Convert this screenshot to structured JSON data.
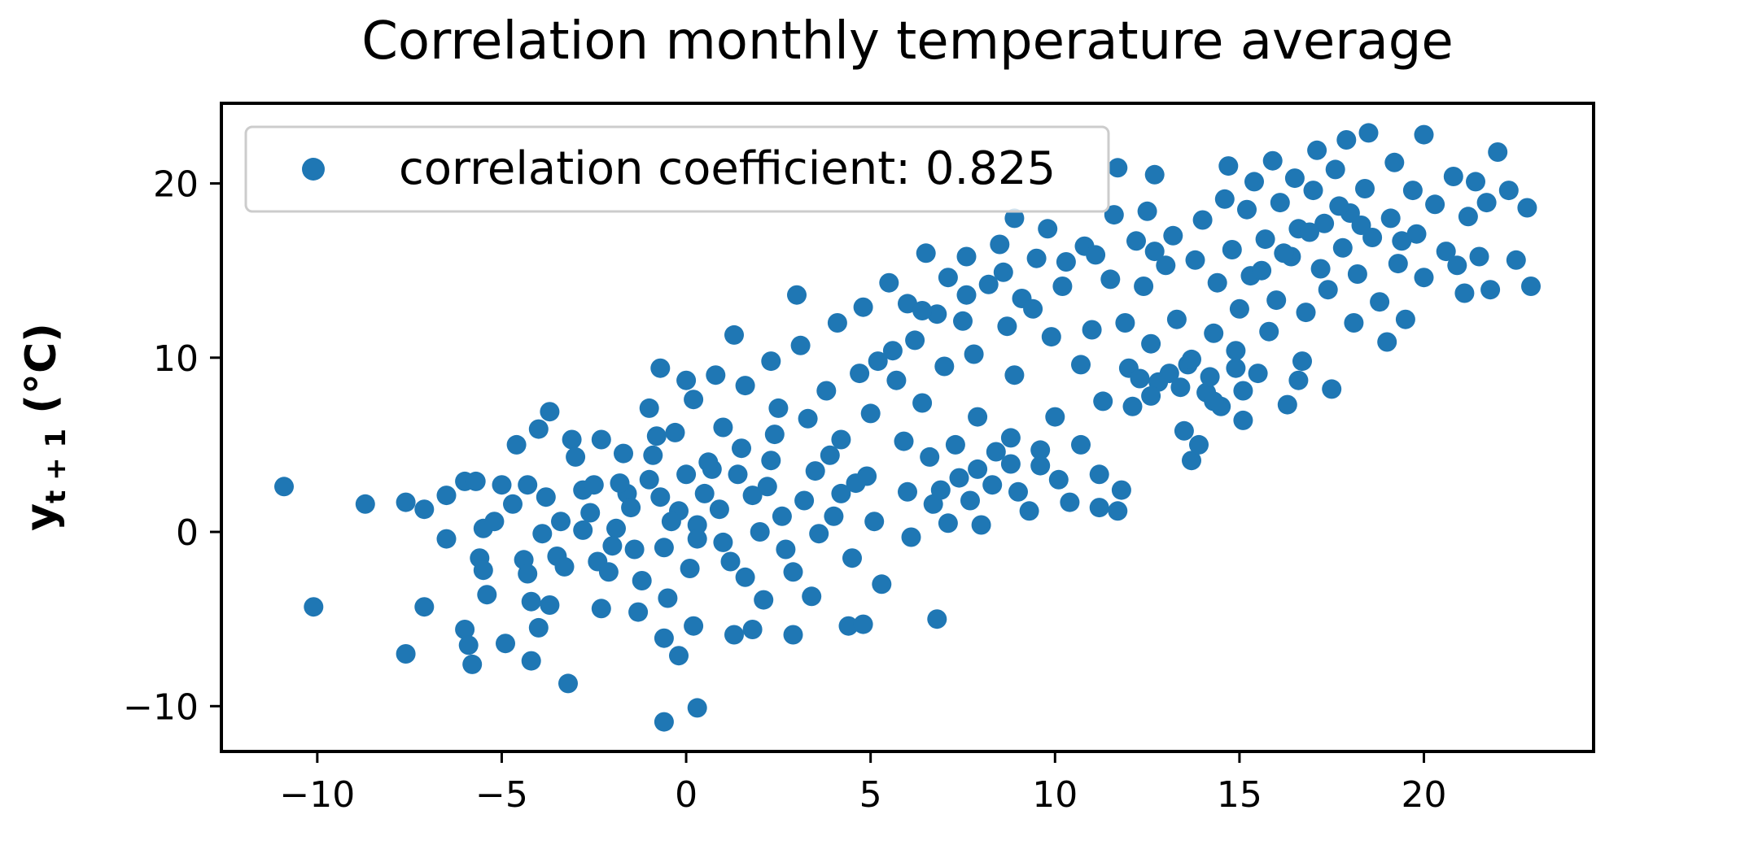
{
  "chart_data": {
    "type": "scatter",
    "title": "Correlation monthly temperature average",
    "xlabel": "",
    "ylabel_main": "y",
    "ylabel_sub": "t + 1",
    "ylabel_unit": " (°C)",
    "xlim": [
      -12.6,
      24.6
    ],
    "ylim": [
      -12.6,
      24.6
    ],
    "xticks": [
      -10,
      -5,
      0,
      5,
      10,
      15,
      20
    ],
    "yticks": [
      -10,
      0,
      10,
      20
    ],
    "xtick_labels": [
      "−10",
      "−5",
      "0",
      "5",
      "10",
      "15",
      "20"
    ],
    "ytick_labels": [
      "−10",
      "0",
      "10",
      "20"
    ],
    "grid": false,
    "legend_position": "top-left",
    "marker_color": "#1f77b4",
    "series": [
      {
        "name": "correlation coefficient: 0.825",
        "points": [
          [
            -10.9,
            2.6
          ],
          [
            -10.1,
            -4.3
          ],
          [
            -8.7,
            1.6
          ],
          [
            -7.6,
            1.7
          ],
          [
            -7.1,
            1.3
          ],
          [
            -7.1,
            -4.3
          ],
          [
            -7.6,
            -7.0
          ],
          [
            -6.5,
            2.1
          ],
          [
            -6.5,
            -0.4
          ],
          [
            -6.0,
            2.9
          ],
          [
            -5.7,
            2.9
          ],
          [
            -6.0,
            -5.6
          ],
          [
            -5.9,
            -6.5
          ],
          [
            -5.8,
            -7.6
          ],
          [
            -5.5,
            0.2
          ],
          [
            -5.6,
            -1.5
          ],
          [
            -5.5,
            -2.2
          ],
          [
            -5.4,
            -3.6
          ],
          [
            -5.2,
            0.6
          ],
          [
            -5.0,
            2.7
          ],
          [
            -4.9,
            -6.4
          ],
          [
            -4.7,
            1.6
          ],
          [
            -4.6,
            5.0
          ],
          [
            -4.3,
            2.7
          ],
          [
            -4.4,
            -1.6
          ],
          [
            -4.3,
            -2.4
          ],
          [
            -4.2,
            -4.0
          ],
          [
            -4.2,
            -7.4
          ],
          [
            -4.0,
            5.9
          ],
          [
            -3.9,
            -0.1
          ],
          [
            -4.0,
            -5.5
          ],
          [
            -3.7,
            6.9
          ],
          [
            -3.8,
            2.0
          ],
          [
            -3.5,
            -1.4
          ],
          [
            -3.7,
            -4.2
          ],
          [
            -3.4,
            0.6
          ],
          [
            -3.1,
            5.3
          ],
          [
            -3.2,
            -8.7
          ],
          [
            -3.0,
            4.3
          ],
          [
            -2.8,
            2.4
          ],
          [
            -2.6,
            1.1
          ],
          [
            -2.4,
            -1.7
          ],
          [
            -2.3,
            5.3
          ],
          [
            -2.3,
            -4.4
          ],
          [
            -1.9,
            0.2
          ],
          [
            -1.7,
            4.5
          ],
          [
            -1.6,
            2.2
          ],
          [
            -1.4,
            -1.0
          ],
          [
            -1.2,
            -2.8
          ],
          [
            -1.3,
            -4.6
          ],
          [
            -1.0,
            7.1
          ],
          [
            -0.8,
            5.5
          ],
          [
            -0.7,
            2.0
          ],
          [
            -0.7,
            9.4
          ],
          [
            -0.6,
            -0.9
          ],
          [
            -0.5,
            -3.8
          ],
          [
            -0.6,
            -6.1
          ],
          [
            -0.6,
            -10.9
          ],
          [
            -0.3,
            5.7
          ],
          [
            -0.2,
            1.2
          ],
          [
            -0.2,
            -7.1
          ],
          [
            0.0,
            8.7
          ],
          [
            0.2,
            7.6
          ],
          [
            0.0,
            3.3
          ],
          [
            0.3,
            0.4
          ],
          [
            0.1,
            -2.1
          ],
          [
            0.2,
            -5.4
          ],
          [
            0.3,
            -10.1
          ],
          [
            0.8,
            9.0
          ],
          [
            1.0,
            6.0
          ],
          [
            0.7,
            3.6
          ],
          [
            0.9,
            1.3
          ],
          [
            1.2,
            -1.7
          ],
          [
            1.3,
            -5.9
          ],
          [
            1.3,
            11.3
          ],
          [
            1.6,
            8.4
          ],
          [
            1.5,
            4.8
          ],
          [
            1.8,
            2.1
          ],
          [
            2.0,
            0.0
          ],
          [
            2.1,
            -3.9
          ],
          [
            1.8,
            -5.6
          ],
          [
            2.3,
            9.8
          ],
          [
            2.5,
            7.1
          ],
          [
            2.3,
            4.1
          ],
          [
            2.6,
            0.9
          ],
          [
            2.9,
            -2.3
          ],
          [
            2.9,
            -5.9
          ],
          [
            3.0,
            13.6
          ],
          [
            3.1,
            10.7
          ],
          [
            3.3,
            6.5
          ],
          [
            3.5,
            3.5
          ],
          [
            3.6,
            -0.1
          ],
          [
            3.4,
            -3.7
          ],
          [
            3.8,
            8.1
          ],
          [
            4.1,
            12.0
          ],
          [
            4.2,
            5.3
          ],
          [
            4.2,
            2.2
          ],
          [
            4.5,
            -1.5
          ],
          [
            4.4,
            -5.4
          ],
          [
            4.8,
            12.9
          ],
          [
            4.7,
            9.1
          ],
          [
            5.0,
            6.8
          ],
          [
            4.9,
            3.2
          ],
          [
            4.8,
            -5.3
          ],
          [
            5.1,
            0.6
          ],
          [
            5.3,
            -3.0
          ],
          [
            5.6,
            10.4
          ],
          [
            5.5,
            14.3
          ],
          [
            5.7,
            8.7
          ],
          [
            5.9,
            5.2
          ],
          [
            6.0,
            2.3
          ],
          [
            6.0,
            13.1
          ],
          [
            6.2,
            11.0
          ],
          [
            6.1,
            -0.3
          ],
          [
            6.5,
            16.0
          ],
          [
            6.4,
            7.4
          ],
          [
            6.6,
            4.3
          ],
          [
            6.7,
            1.6
          ],
          [
            6.8,
            12.5
          ],
          [
            6.8,
            -5.0
          ],
          [
            7.1,
            14.6
          ],
          [
            7.0,
            9.5
          ],
          [
            7.3,
            5.0
          ],
          [
            7.1,
            0.5
          ],
          [
            7.6,
            15.8
          ],
          [
            7.5,
            12.1
          ],
          [
            7.4,
            3.1
          ],
          [
            7.8,
            10.2
          ],
          [
            7.9,
            6.6
          ],
          [
            8.0,
            0.4
          ],
          [
            8.2,
            14.2
          ],
          [
            8.3,
            2.7
          ],
          [
            8.5,
            16.5
          ],
          [
            8.7,
            11.8
          ],
          [
            8.8,
            5.4
          ],
          [
            8.9,
            9.0
          ],
          [
            8.9,
            18.0
          ],
          [
            9.1,
            13.4
          ],
          [
            9.3,
            1.2
          ],
          [
            9.5,
            15.7
          ],
          [
            9.6,
            3.8
          ],
          [
            9.9,
            11.2
          ],
          [
            9.8,
            17.4
          ],
          [
            10.0,
            6.6
          ],
          [
            10.2,
            14.1
          ],
          [
            10.4,
            1.7
          ],
          [
            10.7,
            9.6
          ],
          [
            10.7,
            5.0
          ],
          [
            10.8,
            16.4
          ],
          [
            11.0,
            11.6
          ],
          [
            11.2,
            3.3
          ],
          [
            11.2,
            1.4
          ],
          [
            11.3,
            7.5
          ],
          [
            11.5,
            14.5
          ],
          [
            11.6,
            18.2
          ],
          [
            11.7,
            20.9
          ],
          [
            11.8,
            2.4
          ],
          [
            11.7,
            1.2
          ],
          [
            11.9,
            12.0
          ],
          [
            12.0,
            9.4
          ],
          [
            12.2,
            16.7
          ],
          [
            12.1,
            7.2
          ],
          [
            12.4,
            14.1
          ],
          [
            12.6,
            10.8
          ],
          [
            12.5,
            18.4
          ],
          [
            12.7,
            20.5
          ],
          [
            12.8,
            8.6
          ],
          [
            13.0,
            15.3
          ],
          [
            13.2,
            17.0
          ],
          [
            13.3,
            12.2
          ],
          [
            13.5,
            5.8
          ],
          [
            13.6,
            9.6
          ],
          [
            13.7,
            4.1
          ],
          [
            13.8,
            15.6
          ],
          [
            13.9,
            5.0
          ],
          [
            14.0,
            17.9
          ],
          [
            14.1,
            8.0
          ],
          [
            14.3,
            11.4
          ],
          [
            14.4,
            14.3
          ],
          [
            14.5,
            7.2
          ],
          [
            14.6,
            19.1
          ],
          [
            14.7,
            21.0
          ],
          [
            14.8,
            16.2
          ],
          [
            14.9,
            10.4
          ],
          [
            15.0,
            12.8
          ],
          [
            15.1,
            6.4
          ],
          [
            15.2,
            18.5
          ],
          [
            15.3,
            14.7
          ],
          [
            15.4,
            20.1
          ],
          [
            15.5,
            9.1
          ],
          [
            15.7,
            16.8
          ],
          [
            15.8,
            11.5
          ],
          [
            15.9,
            21.3
          ],
          [
            16.0,
            13.3
          ],
          [
            16.1,
            18.9
          ],
          [
            16.3,
            7.3
          ],
          [
            16.4,
            15.8
          ],
          [
            16.5,
            20.3
          ],
          [
            16.6,
            17.4
          ],
          [
            16.7,
            9.8
          ],
          [
            16.8,
            12.6
          ],
          [
            17.0,
            19.6
          ],
          [
            17.1,
            21.9
          ],
          [
            17.2,
            15.1
          ],
          [
            17.3,
            17.7
          ],
          [
            17.4,
            13.9
          ],
          [
            17.5,
            8.2
          ],
          [
            17.6,
            20.8
          ],
          [
            17.8,
            16.3
          ],
          [
            17.9,
            22.5
          ],
          [
            18.0,
            18.3
          ],
          [
            18.1,
            12.0
          ],
          [
            18.2,
            14.8
          ],
          [
            18.4,
            19.7
          ],
          [
            18.5,
            22.9
          ],
          [
            18.6,
            16.9
          ],
          [
            18.8,
            13.2
          ],
          [
            19.0,
            10.9
          ],
          [
            19.1,
            18.0
          ],
          [
            19.2,
            21.2
          ],
          [
            19.3,
            15.4
          ],
          [
            19.5,
            12.2
          ],
          [
            19.7,
            19.6
          ],
          [
            19.8,
            17.1
          ],
          [
            20.0,
            14.6
          ],
          [
            20.0,
            22.8
          ],
          [
            20.3,
            18.8
          ],
          [
            20.6,
            16.1
          ],
          [
            20.8,
            20.4
          ],
          [
            20.9,
            15.3
          ],
          [
            21.1,
            13.7
          ],
          [
            21.2,
            18.1
          ],
          [
            21.4,
            20.1
          ],
          [
            21.5,
            15.8
          ],
          [
            21.7,
            18.9
          ],
          [
            21.8,
            13.9
          ],
          [
            22.0,
            21.8
          ],
          [
            22.3,
            19.6
          ],
          [
            22.5,
            15.6
          ],
          [
            22.8,
            18.6
          ],
          [
            22.9,
            14.1
          ],
          [
            -2.8,
            0.1
          ],
          [
            -2.5,
            2.7
          ],
          [
            -2.0,
            -0.8
          ],
          [
            -1.5,
            1.4
          ],
          [
            -1.0,
            3.0
          ],
          [
            -0.4,
            0.6
          ],
          [
            0.5,
            2.2
          ],
          [
            1.0,
            -0.6
          ],
          [
            1.4,
            3.3
          ],
          [
            2.2,
            2.6
          ],
          [
            2.7,
            -1.0
          ],
          [
            3.2,
            1.8
          ],
          [
            3.9,
            4.4
          ],
          [
            4.0,
            0.9
          ],
          [
            4.6,
            2.8
          ],
          [
            5.2,
            9.8
          ],
          [
            6.4,
            12.7
          ],
          [
            7.6,
            13.6
          ],
          [
            8.6,
            14.9
          ],
          [
            9.4,
            12.8
          ],
          [
            10.3,
            15.5
          ],
          [
            11.1,
            15.9
          ],
          [
            12.7,
            16.1
          ],
          [
            13.4,
            8.3
          ],
          [
            14.2,
            8.9
          ],
          [
            15.6,
            15.0
          ],
          [
            16.2,
            16.0
          ],
          [
            16.9,
            17.2
          ],
          [
            17.7,
            18.7
          ],
          [
            18.3,
            17.6
          ],
          [
            19.4,
            16.7
          ],
          [
            7.9,
            3.6
          ],
          [
            8.4,
            4.6
          ],
          [
            9.0,
            2.3
          ],
          [
            9.6,
            4.7
          ],
          [
            10.1,
            3.0
          ],
          [
            6.9,
            2.4
          ],
          [
            7.7,
            1.8
          ],
          [
            8.8,
            3.9
          ],
          [
            12.6,
            7.8
          ],
          [
            13.1,
            9.1
          ],
          [
            14.3,
            7.5
          ],
          [
            15.1,
            8.1
          ],
          [
            13.7,
            9.9
          ],
          [
            16.6,
            8.7
          ],
          [
            12.3,
            8.8
          ],
          [
            14.9,
            9.4
          ],
          [
            -3.3,
            -2.0
          ],
          [
            -2.1,
            -2.3
          ],
          [
            -1.8,
            2.8
          ],
          [
            -0.9,
            4.4
          ],
          [
            0.3,
            -0.4
          ],
          [
            0.6,
            4.0
          ],
          [
            1.6,
            -2.6
          ],
          [
            2.4,
            5.6
          ]
        ]
      }
    ]
  }
}
